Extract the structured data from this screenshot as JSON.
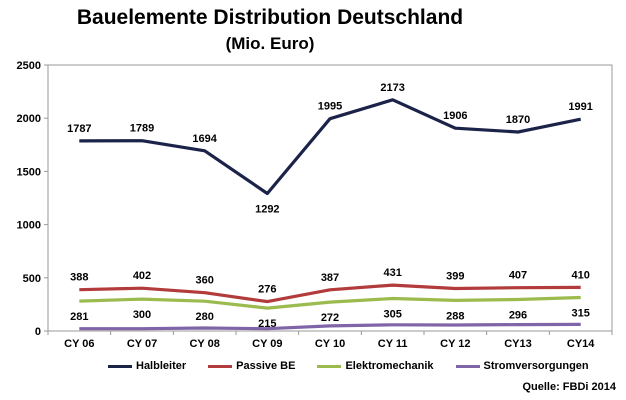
{
  "chart_data": {
    "type": "line",
    "title": "Bauelemente Distribution Deutschland",
    "subtitle": "(Mio. Euro)",
    "categories": [
      "CY 06",
      "CY 07",
      "CY 08",
      "CY 09",
      "CY 10",
      "CY 11",
      "CY 12",
      "CY13",
      "CY14"
    ],
    "ylim": [
      0,
      2500
    ],
    "yticks": [
      "0",
      "500",
      "1000",
      "1500",
      "2000",
      "2500"
    ],
    "grid": false,
    "legend_position": "bottom",
    "series": [
      {
        "name": "Halbleiter",
        "color": "#1b2349",
        "values": [
          1787,
          1789,
          1694,
          1292,
          1995,
          2173,
          1906,
          1870,
          1991
        ],
        "labels": [
          "1787",
          "1789",
          "1694",
          "1292",
          "1995",
          "2173",
          "1906",
          "1870",
          "1991"
        ],
        "label_pos": [
          "above",
          "above",
          "above",
          "below",
          "above",
          "above",
          "above",
          "above",
          "above"
        ]
      },
      {
        "name": "Passive BE",
        "color": "#b23b3b",
        "values": [
          388,
          402,
          360,
          276,
          387,
          431,
          399,
          407,
          410
        ],
        "labels": [
          "388",
          "402",
          "360",
          "276",
          "387",
          "431",
          "399",
          "407",
          "410"
        ],
        "label_pos": [
          "above",
          "above",
          "above",
          "above",
          "above",
          "above",
          "above",
          "above",
          "above"
        ]
      },
      {
        "name": "Elektromechanik",
        "color": "#9bbb4e",
        "values": [
          281,
          300,
          280,
          215,
          272,
          305,
          288,
          296,
          315
        ],
        "labels": [
          "281",
          "300",
          "280",
          "215",
          "272",
          "305",
          "288",
          "296",
          "315"
        ],
        "label_pos": [
          "below",
          "below",
          "below",
          "below",
          "below",
          "below",
          "below",
          "below",
          "below"
        ]
      },
      {
        "name": "Stromversorgungen",
        "color": "#8064a8",
        "values": [
          22,
          22,
          28,
          22,
          48,
          58,
          56,
          60,
          62
        ],
        "labels": [],
        "label_pos": []
      }
    ]
  },
  "source": "Quelle: FBDi 2014"
}
